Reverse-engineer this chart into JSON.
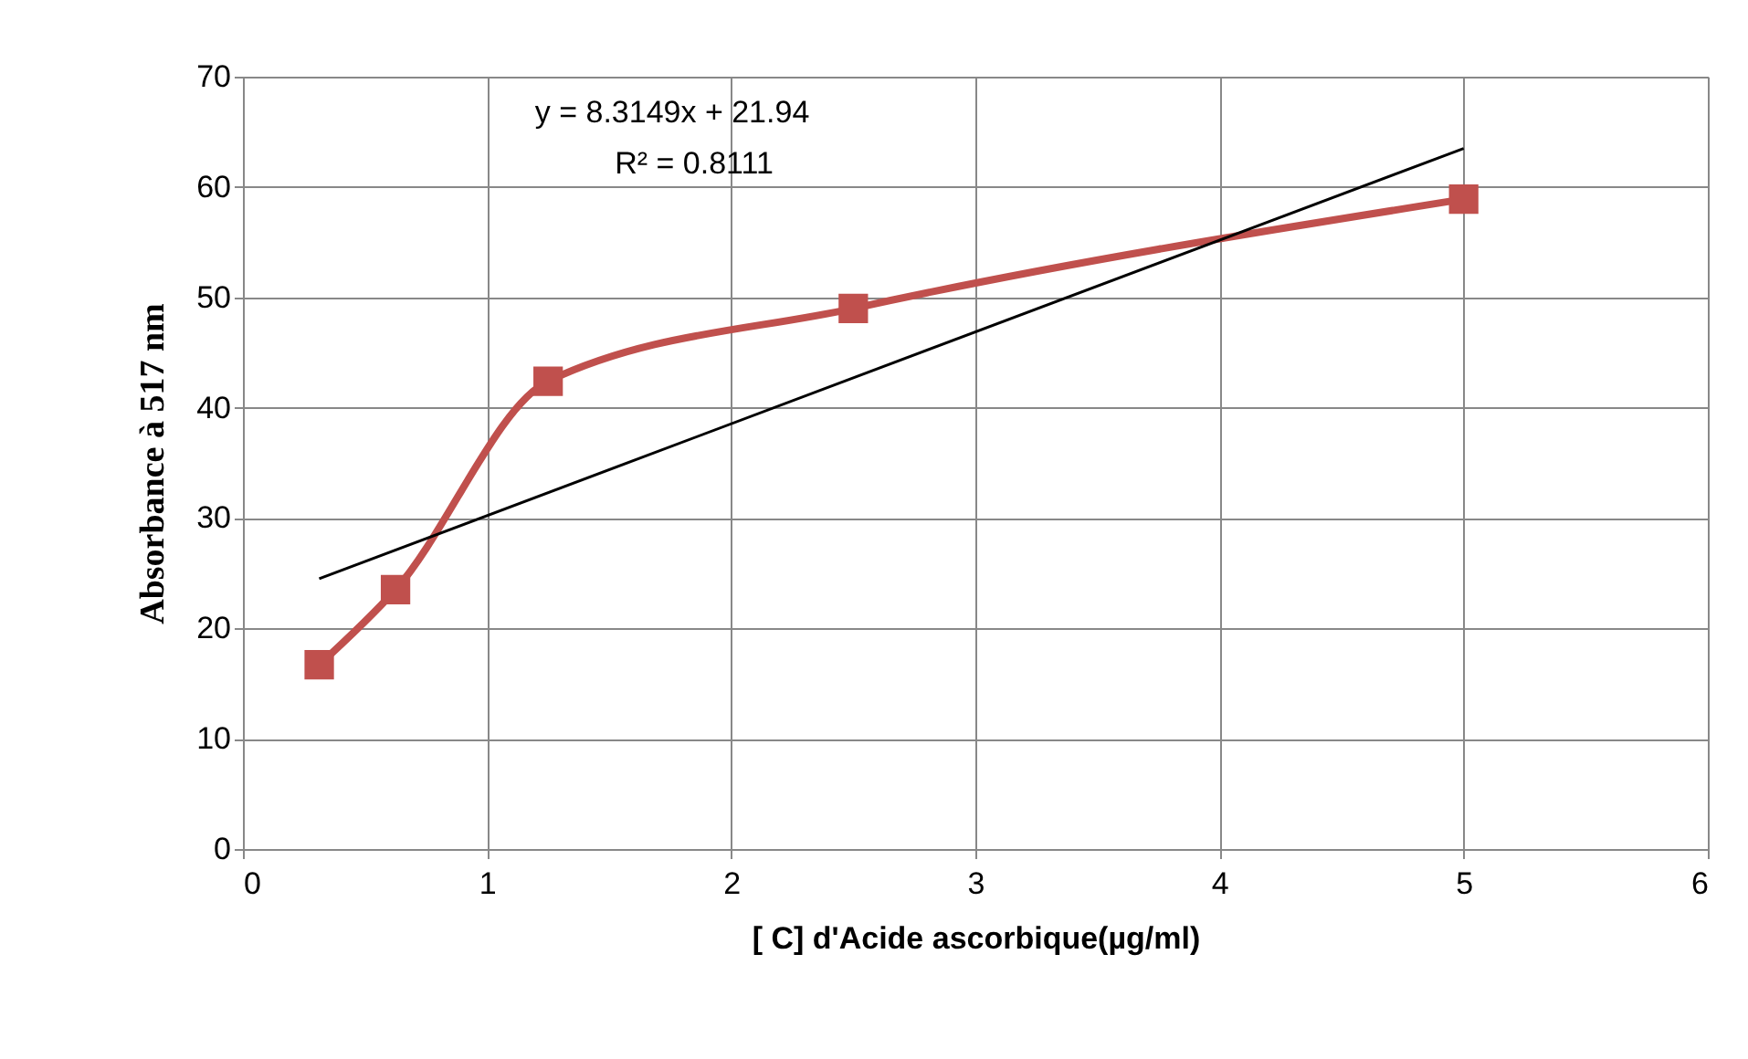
{
  "chart_data": {
    "type": "line",
    "xlabel": "[ C] d'Acide ascorbique(µg/ml)",
    "ylabel": "Absorbance à 517 nm",
    "annotations": [
      "y = 8.3149x + 21.94",
      "R² = 0.8111"
    ],
    "series": [
      {
        "color": "#c0504d",
        "marker": "square",
        "x": [
          0.3125,
          0.625,
          1.25,
          2.5,
          5
        ],
        "values": [
          16.7,
          23.5,
          42.4,
          49.0,
          58.9
        ]
      },
      {
        "color": "#000000",
        "marker": "none",
        "x": [
          0.3125,
          5
        ],
        "values": [
          24.5,
          63.5
        ]
      }
    ],
    "xlim": [
      0,
      6
    ],
    "xticks": [
      0,
      1,
      2,
      3,
      4,
      5,
      6
    ],
    "ylim": [
      0,
      70
    ],
    "yticks": [
      0,
      10,
      20,
      30,
      40,
      50,
      60,
      70
    ],
    "grid": true
  }
}
